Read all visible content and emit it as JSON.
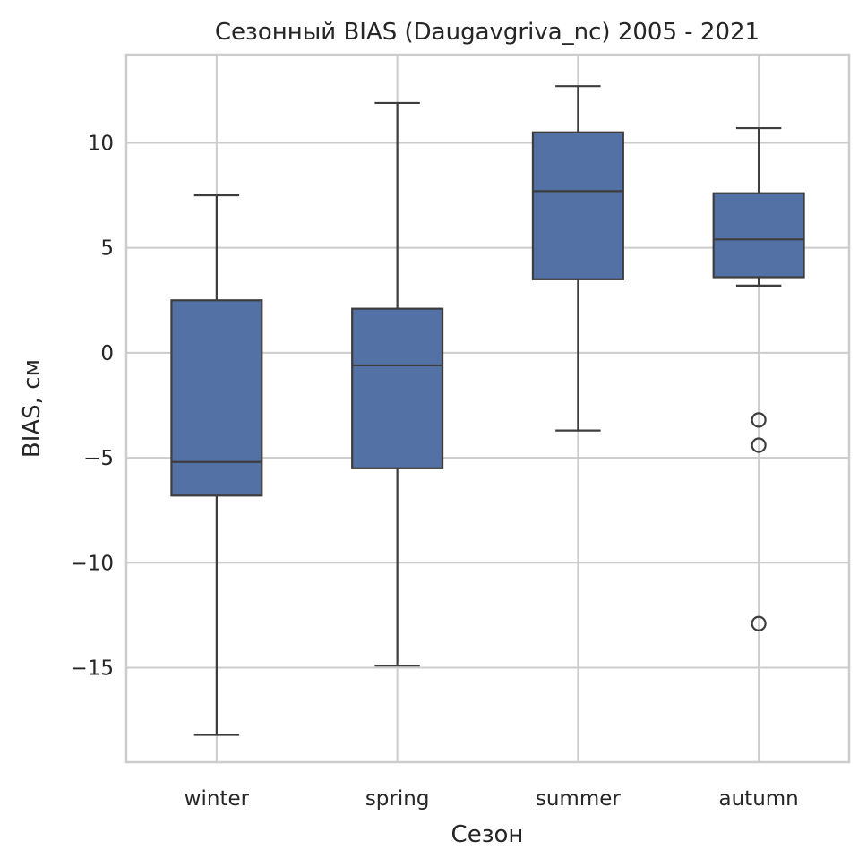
{
  "chart_data": {
    "type": "box",
    "title": "Сезонный BIAS (Daugavgriva_nc) 2005 - 2021",
    "xlabel": "Сезон",
    "ylabel": "BIAS, см",
    "ylim": [
      -19.5,
      14.2
    ],
    "yticks": [
      {
        "value": 10,
        "label": "10"
      },
      {
        "value": 5,
        "label": "5"
      },
      {
        "value": 0,
        "label": "0"
      },
      {
        "value": -5,
        "label": "−5"
      },
      {
        "value": -10,
        "label": "−10"
      },
      {
        "value": -15,
        "label": "−15"
      }
    ],
    "grid": true,
    "box_color": "#5471a5",
    "line_color": "#3d3d3d",
    "grid_color": "#cccccc",
    "categories": [
      "winter",
      "spring",
      "summer",
      "autumn"
    ],
    "boxes": [
      {
        "category": "winter",
        "whisker_low": -18.2,
        "q1": -6.8,
        "median": -5.2,
        "q3": 2.5,
        "whisker_high": 7.5,
        "outliers": []
      },
      {
        "category": "spring",
        "whisker_low": -14.9,
        "q1": -5.5,
        "median": -0.6,
        "q3": 2.1,
        "whisker_high": 11.9,
        "outliers": []
      },
      {
        "category": "summer",
        "whisker_low": -3.7,
        "q1": 3.5,
        "median": 7.7,
        "q3": 10.5,
        "whisker_high": 12.7,
        "outliers": []
      },
      {
        "category": "autumn",
        "whisker_low": 3.2,
        "q1": 3.6,
        "median": 5.4,
        "q3": 7.6,
        "whisker_high": 10.7,
        "outliers": [
          -3.2,
          -4.4,
          -12.9
        ]
      }
    ]
  }
}
